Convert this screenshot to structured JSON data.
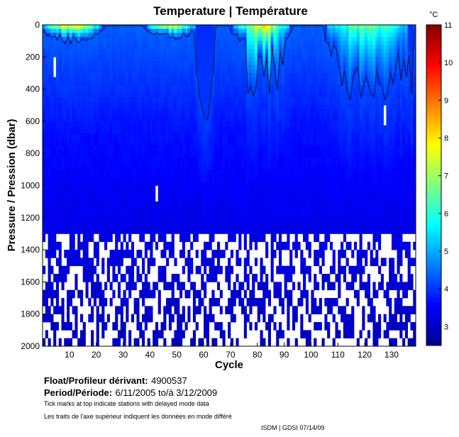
{
  "chart_data": {
    "type": "heatmap",
    "title": "Temperature | Température",
    "xlabel": "Cycle",
    "ylabel": "Pressure / Pression (dbar)",
    "xlim": [
      0,
      139
    ],
    "ylim": [
      2000,
      0
    ],
    "y_reversed": true,
    "xticks": [
      10,
      20,
      30,
      40,
      50,
      60,
      70,
      80,
      90,
      100,
      110,
      120,
      130
    ],
    "yticks": [
      0,
      200,
      400,
      600,
      800,
      1000,
      1200,
      1400,
      1600,
      1800,
      2000
    ],
    "colorbar": {
      "unit": "°C",
      "range": [
        2.5,
        11
      ],
      "ticks": [
        3,
        4,
        5,
        6,
        7,
        8,
        9,
        10,
        11
      ],
      "colormap": "jet"
    },
    "contour_levels": [
      4
    ],
    "dominant_deep_temperature": 3.5,
    "warm_surface_events": [
      {
        "cycle_start": 1,
        "cycle_end": 22,
        "max_depth": 100,
        "surface_temp": 10.5
      },
      {
        "cycle_start": 40,
        "cycle_end": 57,
        "max_depth": 80,
        "surface_temp": 10.2
      },
      {
        "cycle_start": 72,
        "cycle_end": 92,
        "max_depth": 150,
        "surface_temp": 9.5
      },
      {
        "cycle_start": 107,
        "cycle_end": 136,
        "max_depth": 450,
        "surface_temp": 8.0
      }
    ],
    "missing_data": [
      {
        "cycle": 5,
        "pressure_range": [
          200,
          320
        ]
      },
      {
        "cycle": 43,
        "pressure_range": [
          1000,
          1100
        ]
      },
      {
        "cycle": 128,
        "pressure_range": [
          500,
          620
        ]
      }
    ],
    "sparse_coverage_below_dbar": 1300
  },
  "footer": {
    "float_label": "Float/Profileur dérivant:",
    "float_id": "4900537",
    "period_label": "Period/Période:",
    "period_value": "6/11/2005  to/à  3/12/2009",
    "note_en": "Tick marks at top indicate stations with delayed mode data",
    "note_fr": "Les traits de l'axe supérieur indiquent les données en mode différé",
    "credit": "ISDM | GDSI  07/14/09"
  }
}
